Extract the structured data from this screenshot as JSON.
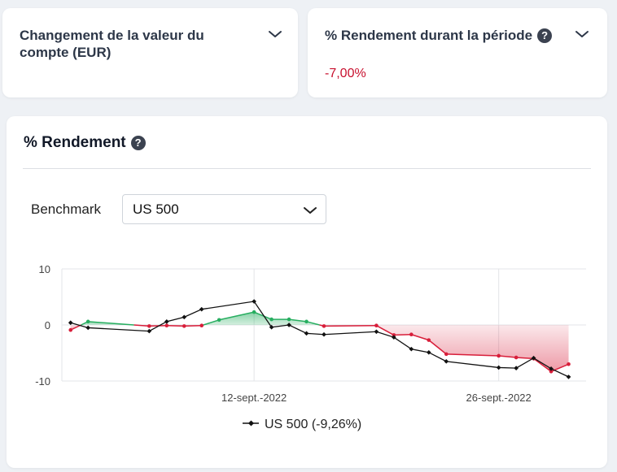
{
  "card_value": {
    "title": "Changement de la valeur du compte (EUR)"
  },
  "card_return": {
    "title": "% Rendement durant la période",
    "value": "-7,00%"
  },
  "chart_card": {
    "title": "% Rendement",
    "benchmark_label": "Benchmark",
    "benchmark_selected": "US 500"
  },
  "icons": {
    "help": "question-mark-icon",
    "dropdown": "chevron-down-icon"
  },
  "colors": {
    "positive": "#27ae60",
    "negative": "#d81e3a",
    "benchmark": "#111111"
  },
  "chart_data": {
    "type": "line",
    "y_ticks": [
      10,
      0,
      -10
    ],
    "ylim": [
      -10,
      10
    ],
    "x_ticks": [
      {
        "day": 12,
        "label": "12-sept.-2022"
      },
      {
        "day": 26,
        "label": "26-sept.-2022"
      }
    ],
    "grid": true,
    "legend": {
      "placement": "bottom",
      "label": "US 500 (-9,26%)"
    },
    "series": [
      {
        "name": "",
        "role": "portfolio",
        "points": [
          [
            1.5,
            -0.9
          ],
          [
            2.5,
            0.6
          ],
          [
            6.0,
            -0.2
          ],
          [
            7.0,
            -0.1
          ],
          [
            8.0,
            -0.2
          ],
          [
            9.0,
            -0.1
          ],
          [
            10.0,
            0.9
          ],
          [
            12.0,
            2.3
          ],
          [
            13.0,
            1.0
          ],
          [
            14.0,
            1.0
          ],
          [
            15.0,
            0.6
          ],
          [
            16.0,
            -0.2
          ],
          [
            19.0,
            -0.1
          ],
          [
            20.0,
            -1.8
          ],
          [
            21.0,
            -1.7
          ],
          [
            22.0,
            -2.7
          ],
          [
            23.0,
            -5.2
          ],
          [
            26.0,
            -5.5
          ],
          [
            27.0,
            -5.8
          ],
          [
            28.0,
            -6.0
          ],
          [
            29.0,
            -8.3
          ],
          [
            30.0,
            -7.0
          ]
        ]
      },
      {
        "name": "US 500",
        "role": "benchmark",
        "points": [
          [
            1.5,
            0.4
          ],
          [
            2.5,
            -0.5
          ],
          [
            6.0,
            -1.1
          ],
          [
            7.0,
            0.6
          ],
          [
            8.0,
            1.4
          ],
          [
            9.0,
            2.8
          ],
          [
            12.0,
            4.2
          ],
          [
            13.0,
            -0.4
          ],
          [
            14.0,
            0.0
          ],
          [
            15.0,
            -1.5
          ],
          [
            16.0,
            -1.7
          ],
          [
            19.0,
            -1.2
          ],
          [
            20.0,
            -2.2
          ],
          [
            21.0,
            -4.3
          ],
          [
            22.0,
            -4.9
          ],
          [
            23.0,
            -6.5
          ],
          [
            26.0,
            -7.6
          ],
          [
            27.0,
            -7.7
          ],
          [
            28.0,
            -5.9
          ],
          [
            29.0,
            -7.8
          ],
          [
            30.0,
            -9.26
          ]
        ]
      }
    ]
  }
}
